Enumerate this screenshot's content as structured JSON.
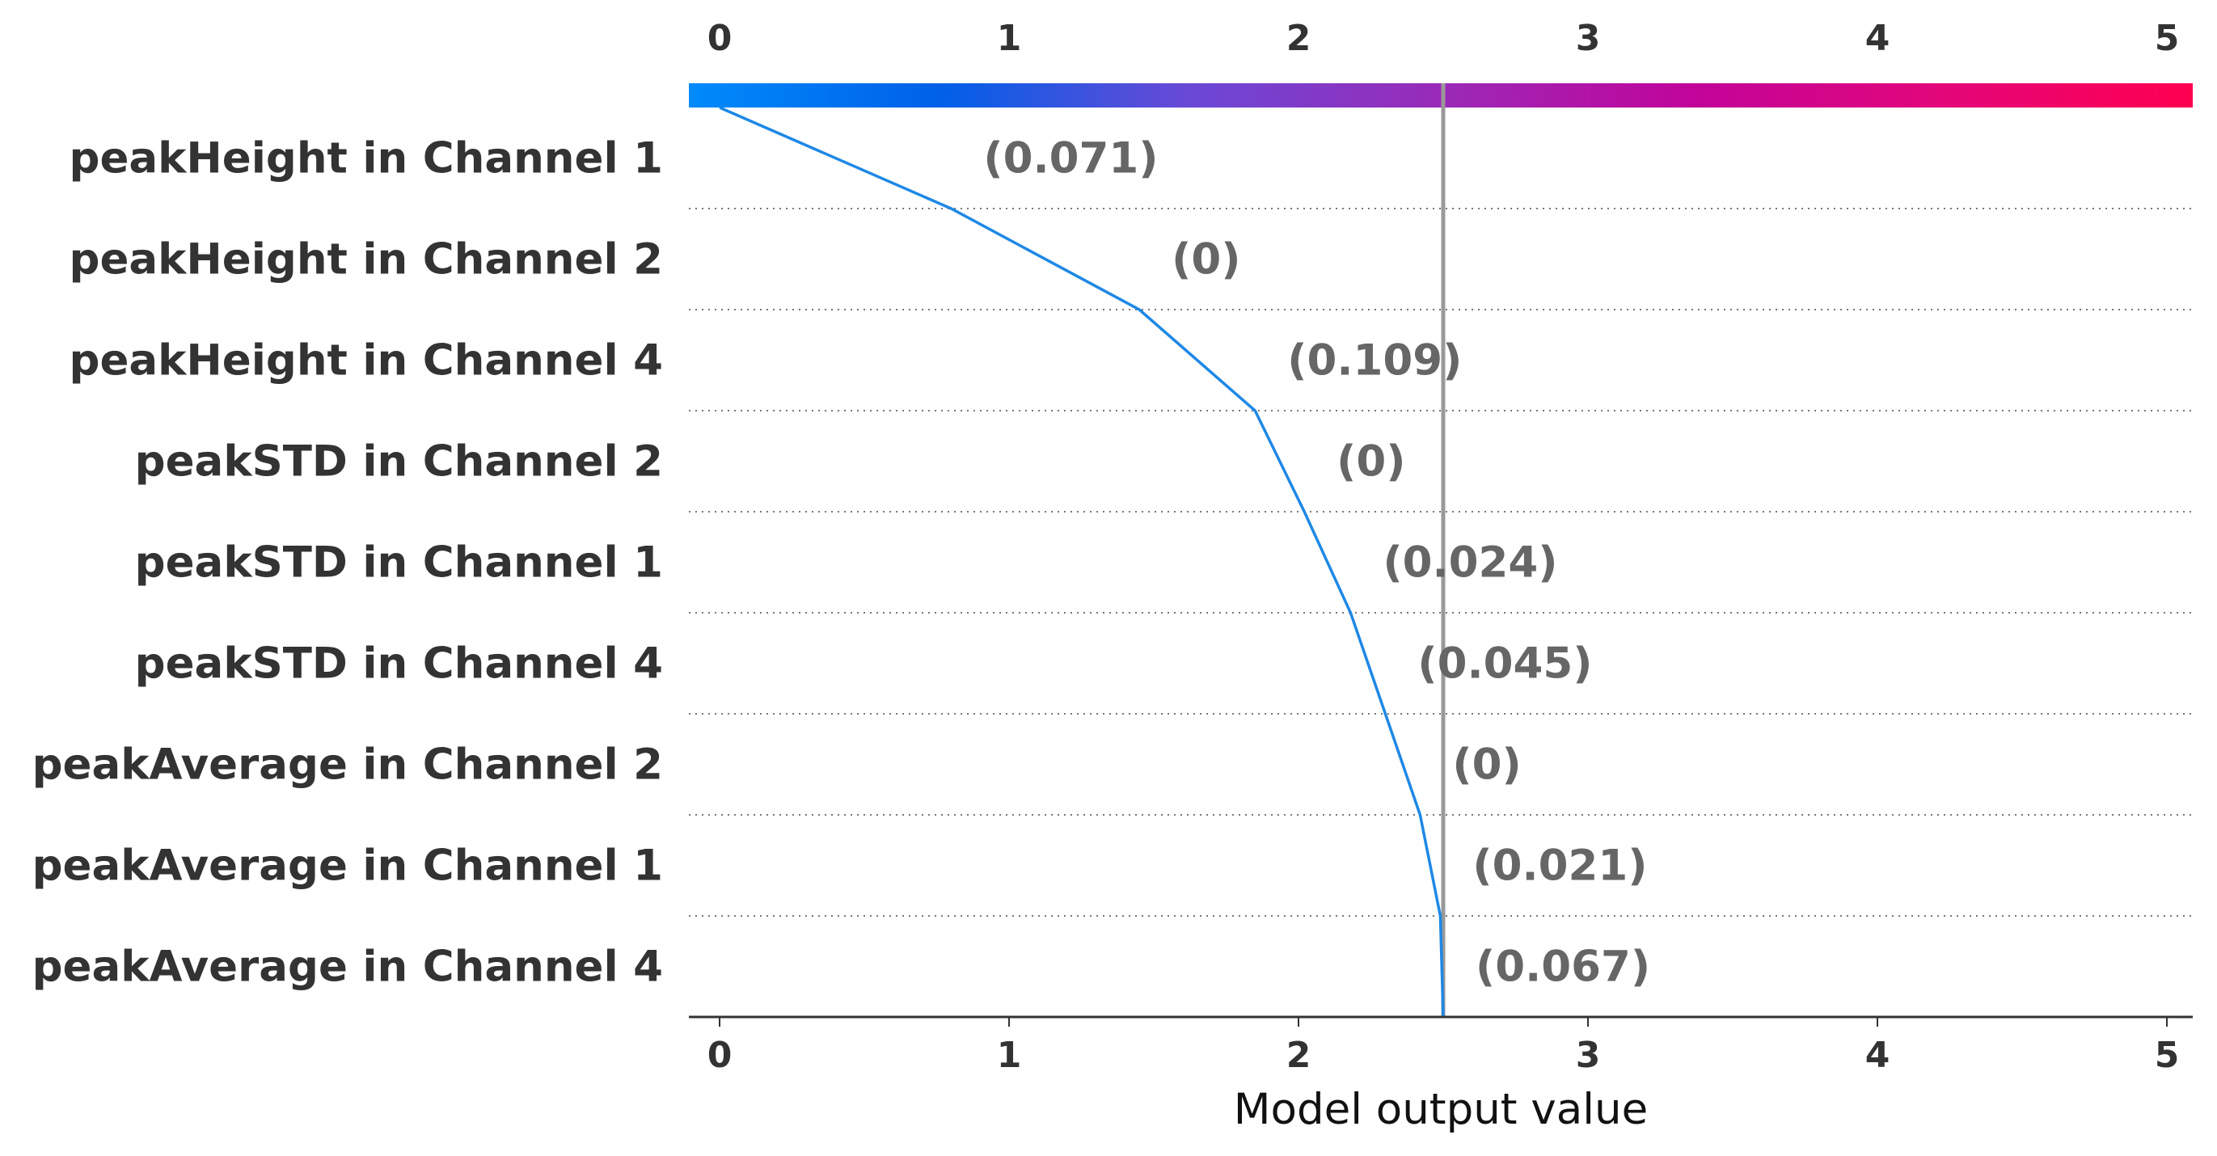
{
  "chart_data": {
    "type": "line",
    "title": "",
    "xlabel": "Model output value",
    "ylabel": "",
    "xlim": [
      -0.1,
      5.1
    ],
    "xticks": [
      0,
      1,
      2,
      3,
      4,
      5
    ],
    "base_value": 0,
    "output_value": 2.5,
    "features": [
      "peakHeight in Channel 1",
      "peakHeight in Channel 2",
      "peakHeight in Channel 4",
      "peakSTD in Channel 2",
      "peakSTD in Channel 1",
      "peakSTD in Channel 4",
      "peakAverage in Channel 2",
      "peakAverage in Channel 1",
      "peakAverage in Channel 4"
    ],
    "feature_values": [
      "(0.071)",
      "(0)",
      "(0.109)",
      "(0)",
      "(0.024)",
      "(0.045)",
      "(0)",
      "(0.021)",
      "(0.067)"
    ],
    "cumulative_output": [
      0.8,
      1.45,
      1.85,
      2.02,
      2.18,
      2.3,
      2.42,
      2.49,
      2.5
    ],
    "line_color": "#1e88e5",
    "colorbar": [
      "#008bfb",
      "#0060e8",
      "#6a49d6",
      "#9a2ab8",
      "#c1049a",
      "#e3077a",
      "#ff0051"
    ],
    "output_line_color": "#999999"
  }
}
